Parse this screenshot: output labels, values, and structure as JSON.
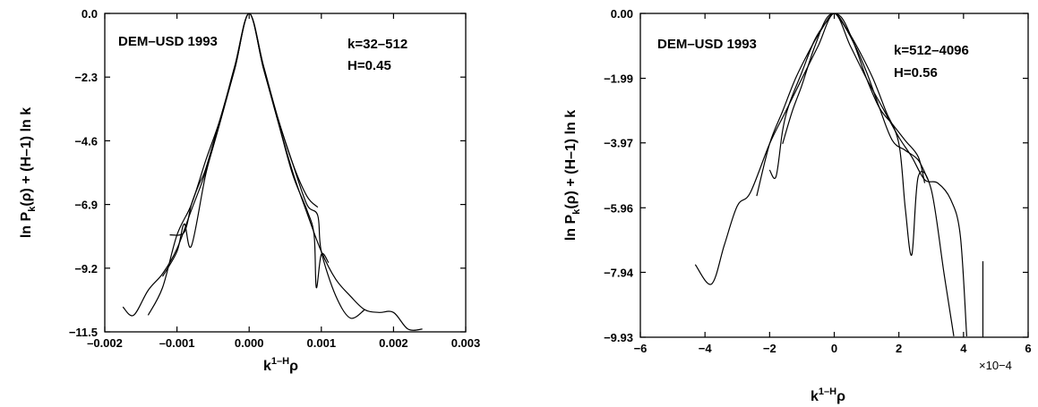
{
  "chart_data": [
    {
      "type": "line",
      "annotations": [
        "DEM–USD 1993",
        "k=32–512",
        "H=0.45"
      ],
      "xlabel": "k1–Hρ",
      "ylabel": "ln Pk(ρ) + (H–1) ln k",
      "xlim": [
        -0.002,
        0.003
      ],
      "ylim": [
        -11.5,
        0.0
      ],
      "xticks": [
        -0.002,
        -0.001,
        0.0,
        0.001,
        0.002,
        0.003
      ],
      "xtick_labels": [
        "–0.002",
        "–0.001",
        "0.000",
        "0.001",
        "0.002",
        "0.003"
      ],
      "yticks": [
        0.0,
        -2.3,
        -4.6,
        -6.9,
        -9.2,
        -11.5
      ],
      "ytick_labels": [
        "0.0",
        "−2.3",
        "−4.6",
        "−6.9",
        "−9.2",
        "−11.5"
      ],
      "grid": false,
      "series": [
        {
          "x": [
            -0.00175,
            -0.0016,
            -0.0014,
            -0.0012,
            -0.001,
            -0.0008,
            -0.0006,
            -0.0004,
            -0.0002,
            0,
            0.0002,
            0.0004,
            0.0006,
            0.0008,
            0.001,
            0.0012,
            0.0014,
            0.0016,
            0.0018,
            0.002,
            0.0022,
            0.0024
          ],
          "y": [
            -10.6,
            -10.9,
            -10.0,
            -9.4,
            -8.5,
            -7.1,
            -5.7,
            -3.9,
            -2.0,
            0.0,
            -2.0,
            -3.9,
            -5.7,
            -7.2,
            -8.6,
            -9.6,
            -10.2,
            -10.7,
            -10.8,
            -10.8,
            -11.4,
            -11.4
          ]
        },
        {
          "x": [
            -0.0014,
            -0.0012,
            -0.001,
            -0.0008,
            -0.0006,
            -0.0004,
            -0.0002,
            0,
            0.0002,
            0.0004,
            0.0006,
            0.0008,
            0.00095,
            0.001,
            0.0012,
            0.0014,
            0.0016
          ],
          "y": [
            -10.9,
            -9.9,
            -8.0,
            -6.9,
            -5.3,
            -3.8,
            -1.9,
            0.0,
            -1.9,
            -3.8,
            -5.4,
            -6.9,
            -7.3,
            -8.6,
            -10.2,
            -11.0,
            -10.7
          ]
        },
        {
          "x": [
            -0.0012,
            -0.001,
            -0.0009,
            -0.0008,
            -0.0006,
            -0.0004,
            -0.0002,
            0,
            0.0002,
            0.0004,
            0.0006,
            0.0008,
            0.0009,
            0.00093,
            0.001,
            0.0011
          ],
          "y": [
            -9.5,
            -8.6,
            -7.6,
            -8.4,
            -5.8,
            -3.9,
            -2.0,
            0.0,
            -2.0,
            -3.9,
            -5.8,
            -7.1,
            -8.0,
            -9.9,
            -8.7,
            -9.0
          ]
        },
        {
          "x": [
            -0.0011,
            -0.0009,
            -0.0008,
            -0.0007,
            -0.0006,
            -0.0004,
            -0.0002,
            0,
            0.0002,
            0.0004,
            0.0006,
            0.0008,
            0.00095
          ],
          "y": [
            -8.0,
            -7.9,
            -6.9,
            -6.2,
            -5.6,
            -3.8,
            -2.0,
            0.0,
            -2.0,
            -3.8,
            -5.4,
            -6.6,
            -7.0
          ]
        }
      ]
    },
    {
      "type": "line",
      "annotations": [
        "DEM–USD 1993",
        "k=512–4096",
        "H=0.56"
      ],
      "xlabel": "k1–Hρ",
      "ylabel": "ln Pk(ρ) + (H–1) ln k",
      "x_multiplier": "×10−4",
      "xlim": [
        -6,
        6
      ],
      "ylim": [
        -9.93,
        0.0
      ],
      "xticks": [
        -6,
        -4,
        -2,
        0,
        2,
        4,
        6
      ],
      "xtick_labels": [
        "−6",
        "−4",
        "−2",
        "0",
        "2",
        "4",
        "6"
      ],
      "yticks": [
        0.0,
        -1.99,
        -3.97,
        -5.96,
        -7.94,
        -9.93
      ],
      "ytick_labels": [
        "0.00",
        "−1.99",
        "−3.97",
        "−5.96",
        "−7.94",
        "−9.93"
      ],
      "grid": false,
      "series": [
        {
          "x": [
            -4.3,
            -3.8,
            -3.4,
            -3.0,
            -2.6,
            -2.0,
            -1.5,
            -1.0,
            -0.5,
            0,
            0.5,
            1.0,
            1.5,
            2.0,
            2.4,
            2.8,
            3.2,
            3.6,
            3.9,
            4.1
          ],
          "y": [
            -7.7,
            -8.3,
            -7.1,
            -5.9,
            -5.5,
            -4.0,
            -3.0,
            -2.0,
            -1.0,
            0.0,
            -1.0,
            -2.0,
            -2.9,
            -3.8,
            -4.4,
            -5.1,
            -5.2,
            -5.7,
            -6.8,
            -9.9
          ]
        },
        {
          "x": [
            -2.4,
            -2.0,
            -1.6,
            -1.2,
            -0.8,
            -0.4,
            0,
            0.4,
            0.8,
            1.2,
            1.6,
            2.0,
            2.2,
            2.4,
            2.6,
            3.0,
            3.4,
            3.7
          ],
          "y": [
            -5.6,
            -4.0,
            -3.0,
            -2.0,
            -1.2,
            -0.5,
            0.0,
            -0.5,
            -1.2,
            -2.0,
            -3.0,
            -4.0,
            -6.0,
            -7.4,
            -5.0,
            -5.4,
            -8.0,
            -9.9
          ]
        },
        {
          "x": [
            -2.0,
            -1.8,
            -1.6,
            -1.4,
            -1.0,
            -0.6,
            -0.2,
            0,
            0.2,
            0.6,
            1.0,
            1.4,
            1.8,
            2.2,
            2.6,
            2.9
          ],
          "y": [
            -4.8,
            -5.0,
            -3.6,
            -2.8,
            -1.8,
            -0.8,
            -0.2,
            0.0,
            -0.2,
            -0.9,
            -1.8,
            -2.9,
            -3.9,
            -4.2,
            -4.5,
            -5.1
          ]
        },
        {
          "x": [
            -1.6,
            -1.3,
            -1.0,
            -0.6,
            -0.2,
            0.2,
            0.6,
            1.0,
            1.4,
            1.8,
            2.2,
            2.6,
            2.8
          ],
          "y": [
            -4.0,
            -3.0,
            -2.2,
            -1.0,
            -0.1,
            -0.1,
            -0.9,
            -2.0,
            -2.9,
            -3.4,
            -3.9,
            -4.4,
            -5.2
          ]
        }
      ],
      "markers": [
        {
          "x": 4.6,
          "y_from": -7.6,
          "y_to": -9.93
        }
      ]
    }
  ]
}
